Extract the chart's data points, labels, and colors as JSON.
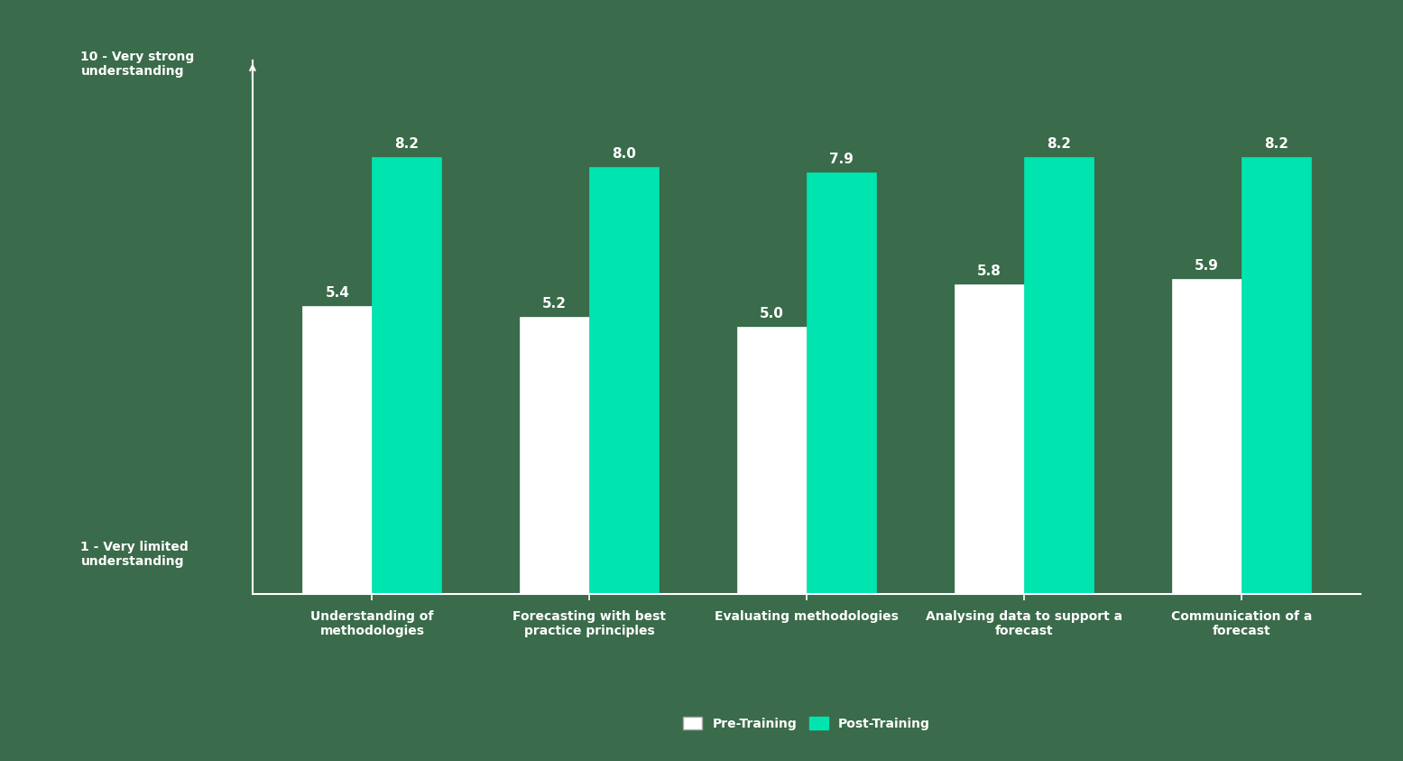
{
  "categories": [
    "Understanding of\nmethodologies",
    "Forecasting with best\npractice principles",
    "Evaluating methodologies",
    "Analysing data to support a\nforecast",
    "Communication of a\nforecast"
  ],
  "pre_training": [
    5.4,
    5.2,
    5.0,
    5.8,
    5.9
  ],
  "post_training": [
    8.2,
    8.0,
    7.9,
    8.2,
    8.2
  ],
  "pre_color": "#ffffff",
  "post_color": "#00e5b0",
  "background_color": "#3a6b4a",
  "text_color": "#ffffff",
  "bar_edge_color": "#ffffff",
  "ylim": [
    0,
    10
  ],
  "y_axis_top_label": "10 - Very strong\nunderstanding",
  "y_axis_bottom_label": "1 - Very limited\nunderstanding",
  "legend_pre": "Pre-Training",
  "legend_post": "Post-Training",
  "bar_width": 0.32,
  "label_fontsize": 10,
  "tick_fontsize": 10,
  "value_fontsize": 11
}
